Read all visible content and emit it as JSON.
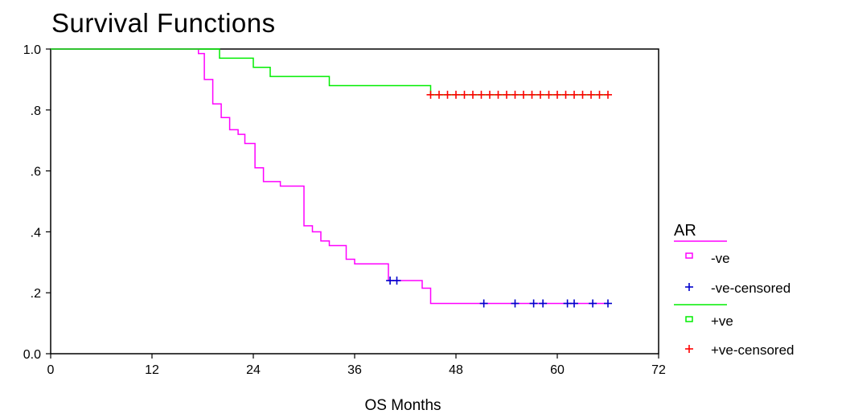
{
  "chart_data": {
    "type": "line",
    "subtype": "step (Kaplan-Meier survival)",
    "title": "Survival Functions",
    "xlabel": "OS Months",
    "ylabel": "",
    "xlim": [
      0,
      72
    ],
    "ylim": [
      0,
      1.0
    ],
    "x_ticks": [
      0,
      12,
      24,
      36,
      48,
      60,
      72
    ],
    "x_tick_labels": [
      "0",
      "12",
      "24",
      "36",
      "48",
      "60",
      "72"
    ],
    "y_ticks": [
      0,
      0.2,
      0.4,
      0.6,
      0.8,
      1.0
    ],
    "y_tick_labels": [
      "0.0",
      ".2",
      ".4",
      ".6",
      ".8",
      "1.0"
    ],
    "grid": false,
    "legend": {
      "title": "AR",
      "position": "right",
      "entries": [
        "-ve",
        "-ve-censored",
        "+ve",
        "+ve-censored"
      ]
    },
    "series": [
      {
        "name": "-ve",
        "color": "#ff00ff",
        "style": "step",
        "steps": [
          [
            0,
            1.0
          ],
          [
            17.5,
            0.985
          ],
          [
            18.2,
            0.9
          ],
          [
            19.2,
            0.82
          ],
          [
            20.2,
            0.775
          ],
          [
            21.2,
            0.735
          ],
          [
            22.2,
            0.72
          ],
          [
            23.0,
            0.69
          ],
          [
            24.2,
            0.61
          ],
          [
            25.2,
            0.565
          ],
          [
            27.2,
            0.55
          ],
          [
            30.0,
            0.42
          ],
          [
            31.0,
            0.4
          ],
          [
            32.0,
            0.37
          ],
          [
            33.0,
            0.355
          ],
          [
            35.0,
            0.31
          ],
          [
            36.0,
            0.295
          ],
          [
            40.0,
            0.24
          ],
          [
            44.0,
            0.215
          ],
          [
            45.0,
            0.165
          ],
          [
            66.0,
            0.165
          ]
        ]
      },
      {
        "name": "-ve-censored",
        "color": "#0000cc",
        "marker": "+",
        "x": [
          40.2,
          41.0,
          51.3,
          55.0,
          57.2,
          58.3,
          61.2,
          62.0,
          64.2,
          66.0
        ],
        "y": [
          0.24,
          0.24,
          0.165,
          0.165,
          0.165,
          0.165,
          0.165,
          0.165,
          0.165,
          0.165
        ]
      },
      {
        "name": "+ve",
        "color": "#00ee00",
        "style": "step",
        "steps": [
          [
            0,
            1.0
          ],
          [
            20.0,
            0.97
          ],
          [
            24.0,
            0.94
          ],
          [
            26.0,
            0.91
          ],
          [
            33.0,
            0.88
          ],
          [
            45.0,
            0.85
          ],
          [
            66.0,
            0.85
          ]
        ]
      },
      {
        "name": "+ve-censored",
        "color": "#ff0000",
        "marker": "+",
        "x": [
          45.0,
          46.0,
          47.0,
          48.0,
          49.0,
          50.0,
          51.0,
          52.0,
          53.0,
          54.0,
          55.0,
          56.0,
          57.0,
          58.0,
          59.0,
          60.0,
          61.0,
          62.0,
          63.0,
          64.0,
          65.0,
          66.0
        ],
        "y": [
          0.85,
          0.85,
          0.85,
          0.85,
          0.85,
          0.85,
          0.85,
          0.85,
          0.85,
          0.85,
          0.85,
          0.85,
          0.85,
          0.85,
          0.85,
          0.85,
          0.85,
          0.85,
          0.85,
          0.85,
          0.85,
          0.85
        ]
      }
    ]
  }
}
